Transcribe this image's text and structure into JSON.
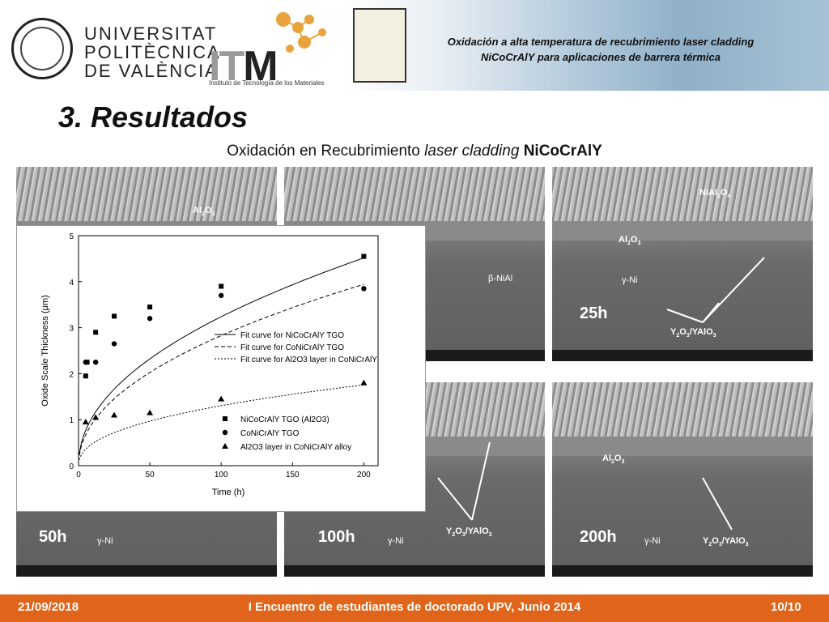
{
  "header": {
    "university": [
      "UNIVERSITAT",
      "POLITÈCNICA",
      "DE VALÈNCIA"
    ],
    "itm_logo_text": "ITM",
    "itm_subtitle": "Instituto de Tecnología de los Materiales",
    "title": "Oxidación a alta temperatura de recubrimiento laser cladding NiCoCrAlY para aplicaciones de barrera térmica"
  },
  "section_title": "3. Resultados",
  "subtitle": {
    "prefix": "Oxidación en Recubrimiento ",
    "italic": "laser cladding",
    "bold": "NiCoCrAlY"
  },
  "panels": {
    "p2": {
      "label": "β-NiAl"
    },
    "p3": {
      "time": "25h",
      "top": "NiAl2O4",
      "oxide": "Al2O3",
      "phase": "γ-Ni",
      "y": "Y2O3/YAlO3"
    },
    "p4": {
      "time": "50h",
      "phase": "γ-Ni"
    },
    "p5": {
      "time": "100h",
      "phase": "γ-Ni",
      "y": "Y2O3/YAlO3"
    },
    "p6": {
      "time": "200h",
      "oxide": "Al2O3",
      "phase": "γ-Ni",
      "y": "Y2O3/YAlO3"
    },
    "p1": {
      "oxide": "Al2O3"
    }
  },
  "chart_data": {
    "type": "scatter",
    "xlabel": "Time (h)",
    "ylabel": "Oxide Scale Thickness (μm)",
    "xlim": [
      0,
      210
    ],
    "ylim": [
      0,
      5
    ],
    "xticks": [
      0,
      50,
      100,
      150,
      200
    ],
    "yticks": [
      0,
      1,
      2,
      3,
      4,
      5
    ],
    "legend_position": "center-right",
    "fit_curves": [
      {
        "name": "Fit curve for NiCoCrAlY TGO",
        "style": "solid",
        "a": 0.355,
        "exp": 0.48
      },
      {
        "name": "Fit curve for CoNiCrAlY TGO",
        "style": "dashed",
        "a": 0.31,
        "exp": 0.48
      },
      {
        "name": "Fit curve for Al2O3 layer in CoNiCrAlY",
        "style": "dotted",
        "a": 0.18,
        "exp": 0.43
      }
    ],
    "series": [
      {
        "name": "NiCoCrAlY TGO (Al2O3)",
        "marker": "square",
        "x": [
          5,
          6,
          12,
          25,
          50,
          100,
          200
        ],
        "y": [
          1.95,
          2.25,
          2.9,
          3.25,
          3.45,
          3.9,
          4.55
        ]
      },
      {
        "name": "CoNiCrAlY TGO",
        "marker": "circle",
        "x": [
          5,
          12,
          25,
          50,
          100,
          200
        ],
        "y": [
          2.25,
          2.25,
          2.65,
          3.2,
          3.7,
          3.85
        ]
      },
      {
        "name": "Al2O3 layer in CoNiCrAlY alloy",
        "marker": "triangle",
        "x": [
          5,
          12,
          25,
          50,
          100,
          200
        ],
        "y": [
          0.95,
          1.05,
          1.1,
          1.15,
          1.45,
          1.8
        ]
      }
    ]
  },
  "footer": {
    "date": "21/09/2018",
    "event": "I Encuentro de estudiantes de doctorado UPV, Junio 2014",
    "page": "10/10"
  }
}
